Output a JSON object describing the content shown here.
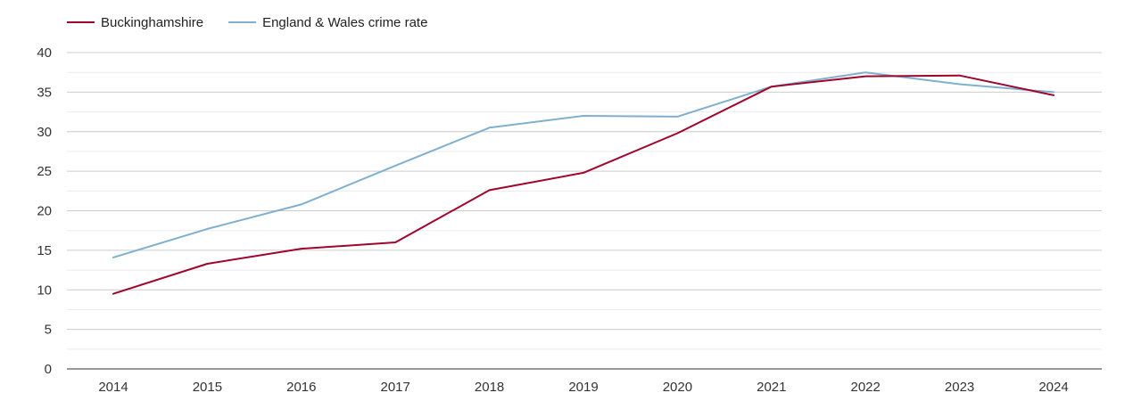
{
  "chart_data": {
    "type": "line",
    "title": "",
    "xlabel": "",
    "ylabel": "",
    "x": [
      "2014",
      "2015",
      "2016",
      "2017",
      "2018",
      "2019",
      "2020",
      "2021",
      "2022",
      "2023",
      "2024"
    ],
    "ylim": [
      0,
      40
    ],
    "yticks": [
      0,
      5,
      10,
      15,
      20,
      25,
      30,
      35,
      40
    ],
    "grid": true,
    "minor_grid": true,
    "legend_position": "top-left",
    "series": [
      {
        "name": "Buckinghamshire",
        "color": "#a0052d",
        "values": [
          9.5,
          13.3,
          15.2,
          16.0,
          22.6,
          24.8,
          29.8,
          35.7,
          37.0,
          37.1,
          34.6
        ]
      },
      {
        "name": "England & Wales crime rate",
        "color": "#7fb0cf",
        "values": [
          14.1,
          17.7,
          20.8,
          25.7,
          30.5,
          32.0,
          31.9,
          35.7,
          37.5,
          36.0,
          35.0
        ]
      }
    ]
  }
}
